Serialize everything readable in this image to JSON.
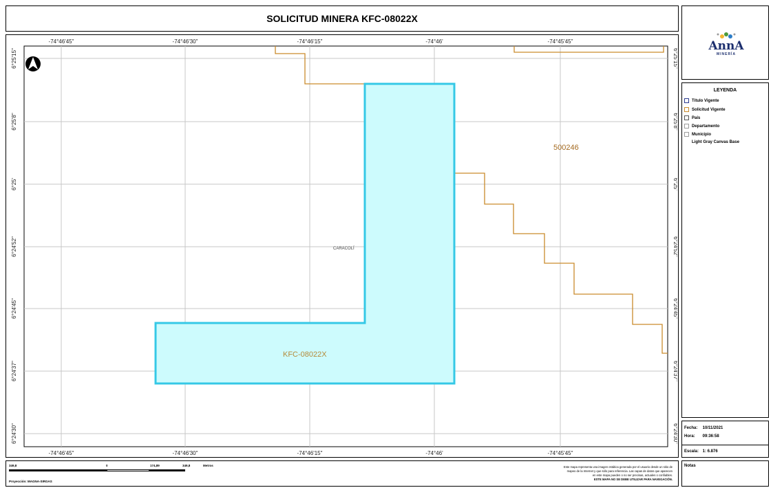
{
  "header": {
    "title": "SOLICITUD MINERA KFC-08022X"
  },
  "logo": {
    "text": "AnnA",
    "subtext": "MINERÍA"
  },
  "legend": {
    "title": "LEYENDA",
    "items": [
      {
        "label": "Título Vigente",
        "color": "#2b3a8f"
      },
      {
        "label": "Solicitud Vigente",
        "color": "#c98a2b"
      },
      {
        "label": "País",
        "color": "#555555"
      },
      {
        "label": "Departamento",
        "color": "#9a9a9a"
      },
      {
        "label": "Municipio",
        "color": "#9a9a9a"
      },
      {
        "label": "Light Gray Canvas Base",
        "color": ""
      }
    ]
  },
  "info": {
    "fecha_label": "Fecha:",
    "fecha": "10/11/2021",
    "hora_label": "Hora:",
    "hora": "09:36:58",
    "escala_label": "Escala:",
    "escala": "1: 6.876"
  },
  "notes": {
    "label": "Notas"
  },
  "footer": {
    "scale_left": "349,8",
    "scale_zero": "0",
    "scale_mid": "174,89",
    "scale_right": "349,8",
    "scale_unit": "Metros",
    "projection": "Proyección: MAGNA-SIRGAS",
    "disclaimer": [
      "Este mapa representa una imagen estática generada por el usuario desde un sitio de",
      "mapeo de la Internet y que sólo para referencia. Las capas de datos que aparecen",
      "en este mapa pueden o no ser precisas, actuales o confiables.",
      "ESTE MAPA NO SE DEBE UTILIZAR PARA NAVEGACIÓN."
    ]
  },
  "map": {
    "lon_labels": [
      "-74°46'45\"",
      "-74°46'30\"",
      "-74°46'15\"",
      "-74°46'",
      "-74°45'45\""
    ],
    "lat_labels": [
      "6°25'15\"",
      "6°25'8\"",
      "6°25'",
      "6°24'52\"",
      "6°24'45\"",
      "6°24'37\"",
      "6°24'30\""
    ],
    "place_label": "CARACOLÍ",
    "parcel_label": "KFC-08022X",
    "neighbor_label": "500246",
    "parcel_color": "#35c8e6",
    "parcel_fill": "#cdfbfd",
    "neighbor_color": "#c98a2b",
    "grid_color": "#c7c7c7"
  }
}
